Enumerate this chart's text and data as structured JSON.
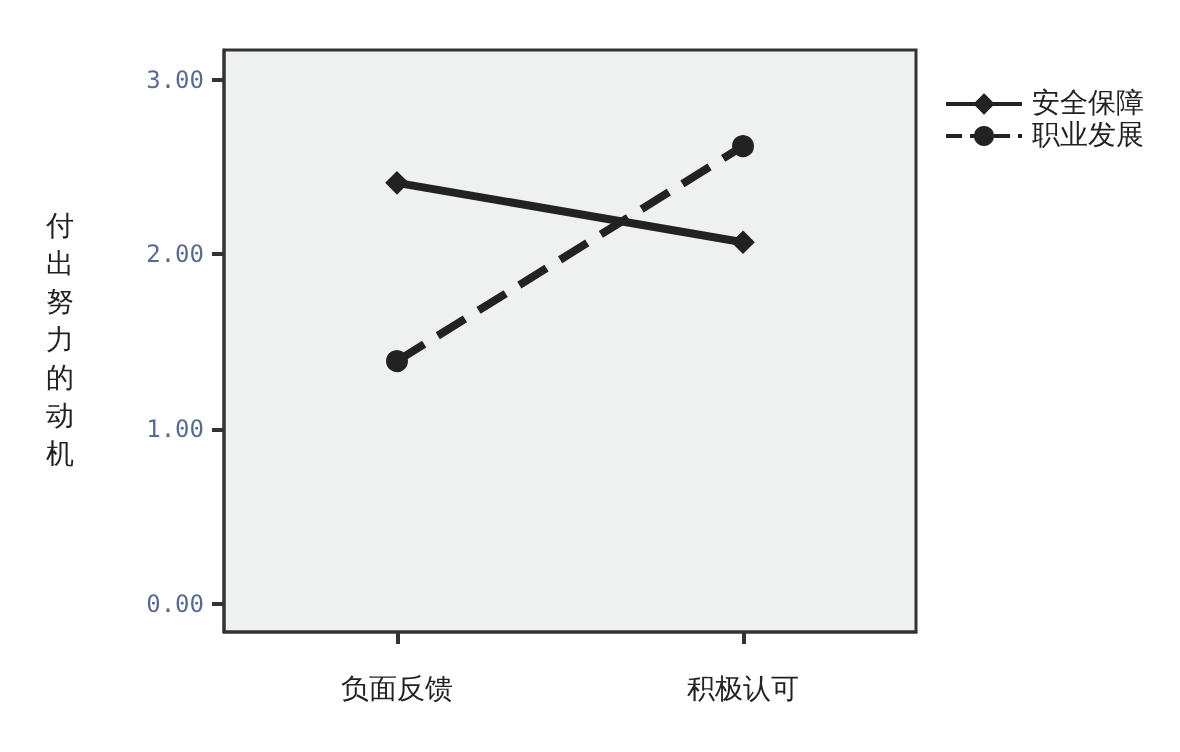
{
  "chart_data": {
    "type": "line",
    "ylabel": "付出努力的动机",
    "categories": [
      "负面反馈",
      "积极认可"
    ],
    "series": [
      {
        "name": "安全保障",
        "color": "#222222",
        "values": [
          2.41,
          2.07
        ],
        "line_style": "solid",
        "marker": "diamond"
      },
      {
        "name": "职业发展",
        "color": "#222222",
        "values": [
          1.39,
          2.62
        ],
        "line_style": "dashed",
        "marker": "circle"
      }
    ],
    "ylim": [
      -0.16,
      3.17
    ],
    "yticks": [
      {
        "value": 0,
        "label": "0.00"
      },
      {
        "value": 1,
        "label": "1.00"
      },
      {
        "value": 2,
        "label": "2.00"
      },
      {
        "value": 3,
        "label": "3.00"
      }
    ],
    "grid": false,
    "legend": "top right"
  }
}
